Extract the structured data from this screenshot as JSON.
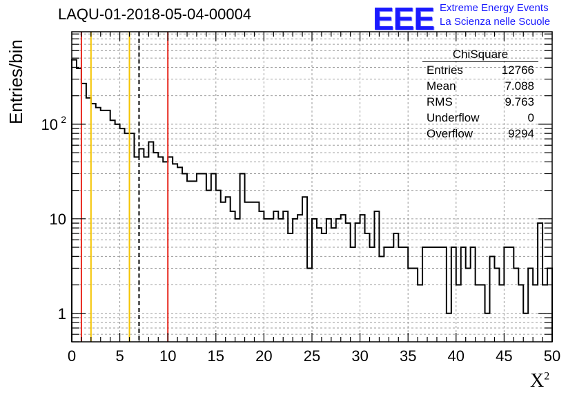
{
  "header": {
    "title": "LAQU-01-2018-05-04-00004",
    "logo_text": "EEE",
    "logo_line1": "Extreme Energy Events",
    "logo_line2": "La Scienza nelle Scuole"
  },
  "stats": {
    "title": "ChiSquare",
    "rows": [
      {
        "label": "Entries",
        "value": "12766"
      },
      {
        "label": "Mean",
        "value": "7.088"
      },
      {
        "label": "RMS",
        "value": "9.763"
      },
      {
        "label": "Underflow",
        "value": "0"
      },
      {
        "label": "Overflow",
        "value": "9294"
      }
    ]
  },
  "chart_data": {
    "type": "histogram",
    "title": "LAQU-01-2018-05-04-00004",
    "xlabel": "X",
    "xlabel_sup": "2",
    "ylabel": "Entries/bin",
    "xlim": [
      0,
      50
    ],
    "ylim": [
      0.5,
      950
    ],
    "yscale": "log",
    "grid": true,
    "bin_width": 0.5,
    "x_ticks": [
      0,
      5,
      10,
      15,
      20,
      25,
      30,
      35,
      40,
      45,
      50
    ],
    "y_tick_labels": [
      {
        "value": 1,
        "label": "1"
      },
      {
        "value": 10,
        "label": "10"
      },
      {
        "value": 100,
        "label": "10",
        "sup": "2"
      }
    ],
    "values": [
      480,
      390,
      270,
      190,
      165,
      150,
      140,
      140,
      110,
      100,
      90,
      80,
      80,
      45,
      55,
      45,
      65,
      50,
      45,
      40,
      45,
      38,
      35,
      30,
      25,
      25,
      30,
      30,
      20,
      30,
      20,
      15,
      17,
      12,
      10,
      30,
      15,
      15,
      15,
      12,
      10,
      10,
      12,
      10,
      12,
      7,
      10,
      11,
      17,
      3,
      10,
      8,
      7,
      10,
      8,
      10,
      11,
      9,
      5,
      9,
      11,
      7,
      5,
      12,
      4,
      5,
      5,
      7,
      5,
      5,
      3,
      3,
      2,
      5,
      5,
      5,
      5,
      5,
      1,
      5,
      2,
      5,
      3,
      5,
      2,
      2,
      1,
      4,
      3,
      2,
      5,
      5,
      3,
      2,
      1,
      3,
      2,
      9,
      2,
      3
    ],
    "vertical_lines": [
      {
        "x": 1,
        "color": "#e8281e",
        "style": "solid"
      },
      {
        "x": 2,
        "color": "#f5c400",
        "style": "solid"
      },
      {
        "x": 6,
        "color": "#f5c400",
        "style": "solid"
      },
      {
        "x": 7,
        "color": "#000000",
        "style": "dashed"
      },
      {
        "x": 10,
        "color": "#e8281e",
        "style": "solid"
      }
    ]
  }
}
